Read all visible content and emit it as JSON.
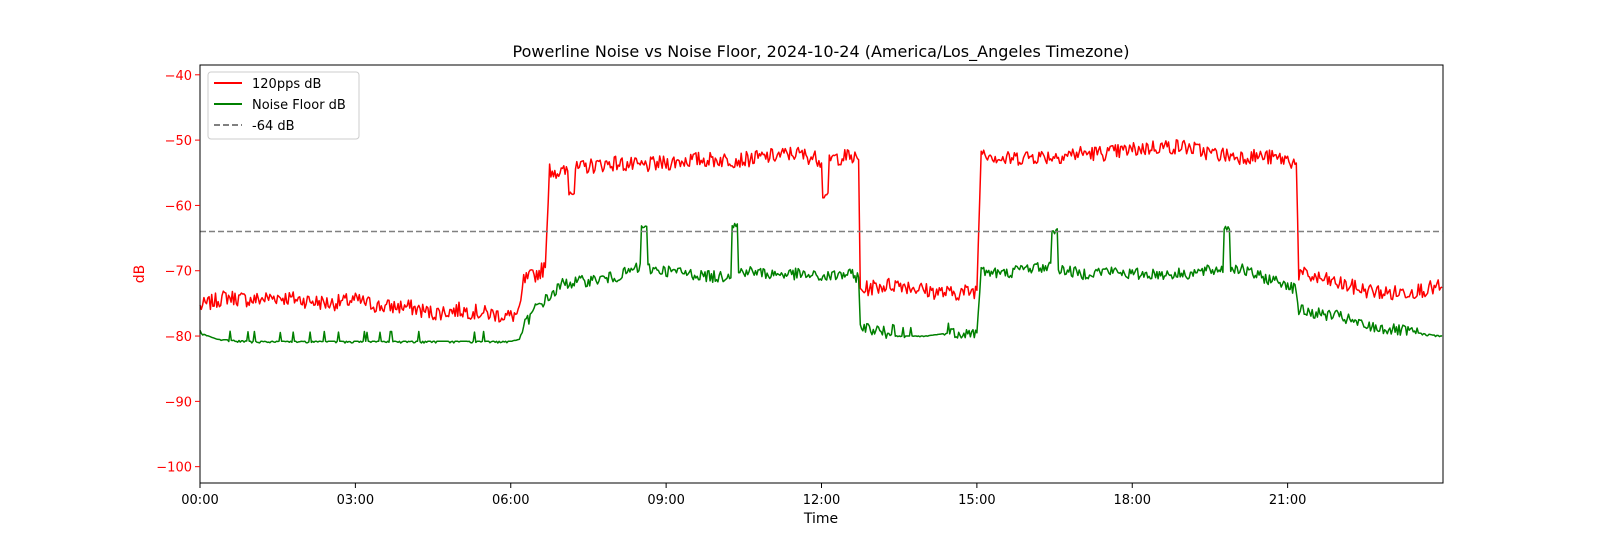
{
  "chart_data": {
    "type": "line",
    "title": "Powerline Noise vs Noise Floor, 2024-10-24 (America/Los_Angeles Timezone)",
    "xlabel": "Time",
    "ylabel": "dB",
    "xlim": [
      "00:00",
      "24:00"
    ],
    "ylim": [
      -102.5,
      -38.5
    ],
    "x_ticks": [
      "00:00",
      "03:00",
      "06:00",
      "09:00",
      "12:00",
      "15:00",
      "18:00",
      "21:00"
    ],
    "y_ticks": [
      -40,
      -50,
      -60,
      -70,
      -80,
      -90,
      -100
    ],
    "grid": false,
    "legend_position": "top-left",
    "y_axis_color": "#ff0000",
    "series": [
      {
        "name": "120pps dB",
        "color": "#ff0000",
        "style": "solid",
        "points": [
          [
            "00:00",
            -75.5
          ],
          [
            "00:30",
            -74.0
          ],
          [
            "01:00",
            -74.5
          ],
          [
            "01:30",
            -74.0
          ],
          [
            "02:00",
            -74.5
          ],
          [
            "02:30",
            -75.0
          ],
          [
            "03:00",
            -74.5
          ],
          [
            "03:30",
            -75.5
          ],
          [
            "04:00",
            -75.5
          ],
          [
            "04:30",
            -76.5
          ],
          [
            "05:00",
            -76.0
          ],
          [
            "05:30",
            -76.5
          ],
          [
            "06:00",
            -77.0
          ],
          [
            "06:10",
            -76.5
          ],
          [
            "06:15",
            -71.5
          ],
          [
            "06:30",
            -70.5
          ],
          [
            "06:40",
            -69.5
          ],
          [
            "06:45",
            -54.5
          ],
          [
            "07:00",
            -55.0
          ],
          [
            "07:30",
            -54.0
          ],
          [
            "08:00",
            -53.5
          ],
          [
            "08:30",
            -54.0
          ],
          [
            "09:00",
            -53.5
          ],
          [
            "09:30",
            -53.0
          ],
          [
            "10:00",
            -53.0
          ],
          [
            "10:30",
            -53.0
          ],
          [
            "11:00",
            -52.5
          ],
          [
            "11:30",
            -52.0
          ],
          [
            "12:00",
            -53.0
          ],
          [
            "12:30",
            -52.5
          ],
          [
            "12:43",
            -53.0
          ],
          [
            "12:45",
            -73.0
          ],
          [
            "13:00",
            -72.5
          ],
          [
            "13:30",
            -72.0
          ],
          [
            "14:00",
            -73.0
          ],
          [
            "14:30",
            -73.5
          ],
          [
            "15:00",
            -73.0
          ],
          [
            "15:05",
            -51.5
          ],
          [
            "15:30",
            -53.0
          ],
          [
            "16:00",
            -52.5
          ],
          [
            "16:30",
            -52.5
          ],
          [
            "17:00",
            -52.0
          ],
          [
            "17:30",
            -52.0
          ],
          [
            "18:00",
            -51.5
          ],
          [
            "18:30",
            -51.0
          ],
          [
            "19:00",
            -51.0
          ],
          [
            "19:30",
            -52.0
          ],
          [
            "20:00",
            -52.5
          ],
          [
            "20:30",
            -52.5
          ],
          [
            "21:00",
            -53.0
          ],
          [
            "21:10",
            -53.5
          ],
          [
            "21:13",
            -70.5
          ],
          [
            "21:30",
            -71.0
          ],
          [
            "22:00",
            -72.0
          ],
          [
            "22:30",
            -73.0
          ],
          [
            "23:00",
            -73.5
          ],
          [
            "23:30",
            -73.0
          ],
          [
            "23:59",
            -72.5
          ]
        ]
      },
      {
        "name": "Noise Floor dB",
        "color": "#008000",
        "style": "solid",
        "points": [
          [
            "00:00",
            -79.5
          ],
          [
            "00:20",
            -80.5
          ],
          [
            "01:00",
            -80.8
          ],
          [
            "02:00",
            -80.8
          ],
          [
            "03:00",
            -80.8
          ],
          [
            "04:00",
            -80.8
          ],
          [
            "05:00",
            -80.8
          ],
          [
            "06:00",
            -80.8
          ],
          [
            "06:10",
            -80.5
          ],
          [
            "06:15",
            -78.5
          ],
          [
            "06:30",
            -75.5
          ],
          [
            "06:45",
            -74.0
          ],
          [
            "07:00",
            -72.0
          ],
          [
            "07:30",
            -71.5
          ],
          [
            "08:00",
            -71.0
          ],
          [
            "08:30",
            -69.5
          ],
          [
            "09:00",
            -70.0
          ],
          [
            "09:30",
            -70.5
          ],
          [
            "10:00",
            -71.0
          ],
          [
            "10:30",
            -70.0
          ],
          [
            "11:00",
            -70.5
          ],
          [
            "11:30",
            -70.5
          ],
          [
            "12:00",
            -71.0
          ],
          [
            "12:30",
            -70.5
          ],
          [
            "12:43",
            -71.0
          ],
          [
            "12:45",
            -78.5
          ],
          [
            "13:00",
            -79.0
          ],
          [
            "13:30",
            -80.0
          ],
          [
            "14:00",
            -80.0
          ],
          [
            "14:30",
            -79.5
          ],
          [
            "15:00",
            -79.5
          ],
          [
            "15:05",
            -70.0
          ],
          [
            "15:30",
            -70.5
          ],
          [
            "16:00",
            -69.5
          ],
          [
            "16:30",
            -69.5
          ],
          [
            "17:00",
            -70.5
          ],
          [
            "17:30",
            -70.0
          ],
          [
            "18:00",
            -70.5
          ],
          [
            "18:30",
            -70.5
          ],
          [
            "19:00",
            -70.5
          ],
          [
            "19:30",
            -70.0
          ],
          [
            "20:00",
            -69.5
          ],
          [
            "20:30",
            -71.0
          ],
          [
            "21:00",
            -72.0
          ],
          [
            "21:10",
            -73.0
          ],
          [
            "21:13",
            -76.0
          ],
          [
            "21:30",
            -76.5
          ],
          [
            "22:00",
            -77.0
          ],
          [
            "22:30",
            -78.5
          ],
          [
            "23:00",
            -79.0
          ],
          [
            "23:30",
            -79.5
          ],
          [
            "23:59",
            -80.0
          ]
        ]
      },
      {
        "name": "-64 dB",
        "color": "#808080",
        "style": "dashed",
        "points": [
          [
            "00:00",
            -64
          ],
          [
            "23:59",
            -64
          ]
        ]
      }
    ],
    "spikes": [
      {
        "series": "Noise Floor dB",
        "x": "08:35",
        "y": -63.5
      },
      {
        "series": "Noise Floor dB",
        "x": "10:20",
        "y": -63.0
      },
      {
        "series": "Noise Floor dB",
        "x": "16:30",
        "y": -64.0
      },
      {
        "series": "Noise Floor dB",
        "x": "19:50",
        "y": -63.5
      },
      {
        "series": "120pps dB",
        "x": "07:10",
        "y": -58.0
      },
      {
        "series": "120pps dB",
        "x": "12:05",
        "y": -58.5
      }
    ]
  }
}
